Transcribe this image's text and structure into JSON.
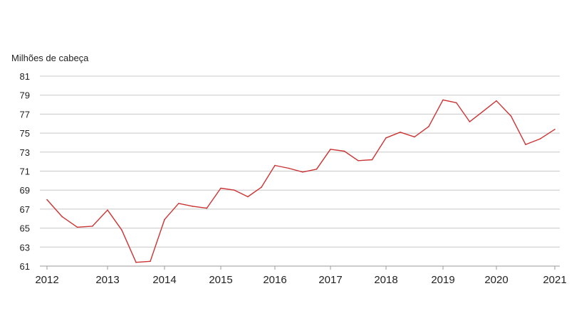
{
  "chart_data": {
    "type": "line",
    "title": "",
    "ylabel": "Milhões de cabeça",
    "xlabel": "",
    "ylim": [
      61,
      81
    ],
    "yticks": [
      61,
      63,
      65,
      67,
      69,
      71,
      73,
      75,
      77,
      79,
      81
    ],
    "x_tick_labels": [
      "2012",
      "2013",
      "2014",
      "2015",
      "2016",
      "2017",
      "2018",
      "2019",
      "2020",
      "2021"
    ],
    "grid": true,
    "legend": "none",
    "series": [
      {
        "color": "#cc3333",
        "points": [
          {
            "x": 2012.0,
            "y": 68.0
          },
          {
            "x": 2012.25,
            "y": 66.2
          },
          {
            "x": 2012.5,
            "y": 65.1
          },
          {
            "x": 2012.75,
            "y": 65.2
          },
          {
            "x": 2013.0,
            "y": 66.9
          },
          {
            "x": 2013.25,
            "y": 64.8
          },
          {
            "x": 2013.5,
            "y": 61.4
          },
          {
            "x": 2013.75,
            "y": 61.5
          },
          {
            "x": 2014.0,
            "y": 65.9
          },
          {
            "x": 2014.25,
            "y": 67.6
          },
          {
            "x": 2014.5,
            "y": 67.3
          },
          {
            "x": 2014.75,
            "y": 67.1
          },
          {
            "x": 2015.0,
            "y": 69.2
          },
          {
            "x": 2015.25,
            "y": 69.0
          },
          {
            "x": 2015.5,
            "y": 68.3
          },
          {
            "x": 2015.75,
            "y": 69.3
          },
          {
            "x": 2016.0,
            "y": 71.6
          },
          {
            "x": 2016.25,
            "y": 71.3
          },
          {
            "x": 2016.5,
            "y": 70.9
          },
          {
            "x": 2016.75,
            "y": 71.2
          },
          {
            "x": 2017.0,
            "y": 73.3
          },
          {
            "x": 2017.25,
            "y": 73.1
          },
          {
            "x": 2017.5,
            "y": 72.1
          },
          {
            "x": 2017.75,
            "y": 72.2
          },
          {
            "x": 2018.0,
            "y": 74.5
          },
          {
            "x": 2018.25,
            "y": 75.1
          },
          {
            "x": 2018.5,
            "y": 74.6
          },
          {
            "x": 2018.75,
            "y": 75.7
          },
          {
            "x": 2019.0,
            "y": 78.5
          },
          {
            "x": 2019.25,
            "y": 78.2
          },
          {
            "x": 2019.5,
            "y": 76.2
          },
          {
            "x": 2019.75,
            "y": 77.3
          },
          {
            "x": 2020.0,
            "y": 78.4
          },
          {
            "x": 2020.25,
            "y": 76.8
          },
          {
            "x": 2020.5,
            "y": 73.8
          },
          {
            "x": 2020.75,
            "y": 74.4
          },
          {
            "x": 2021.0,
            "y": 75.4
          }
        ]
      }
    ]
  }
}
